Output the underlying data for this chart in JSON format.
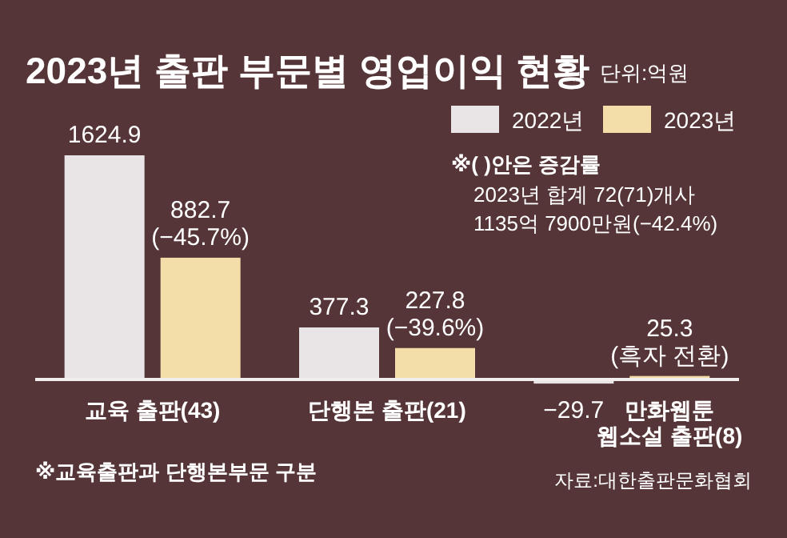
{
  "chart_data": {
    "type": "bar",
    "title": "2023년 출판 부문별 영업이익 현황",
    "subtitle": "단위:억원",
    "categories": [
      "교육 출판(43)",
      "단행본 출판(21)",
      "만화웹툰 웹소설 출판(8)"
    ],
    "series": [
      {
        "name": "2022년",
        "color": "#e9e4e6",
        "values": [
          1624.9,
          377.3,
          -29.7
        ],
        "value_labels": [
          "1624.9",
          "377.3",
          "−29.7"
        ]
      },
      {
        "name": "2023년",
        "color": "#f3deaa",
        "values": [
          882.7,
          227.8,
          25.3
        ],
        "value_labels": [
          "882.7\n(−45.7%)",
          "227.8\n(−39.6%)",
          "25.3\n(흑자 전환)"
        ]
      }
    ],
    "legend": "top right",
    "annotations": [
      "※(   )안은 증감률",
      "2023년 합계 72(71)개사",
      "1135억 7900만원(−42.4%)",
      "※교육출판과 단행본부문 구분",
      "자료:대한출판문화협회"
    ]
  }
}
